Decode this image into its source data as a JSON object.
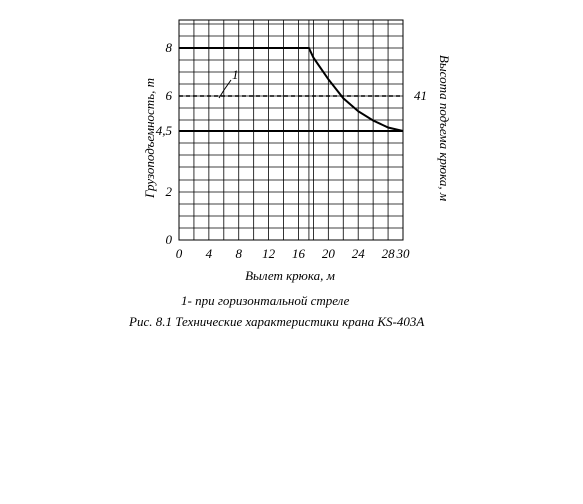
{
  "chart_data": {
    "type": "line",
    "xlabel": "Вылет крюка, м",
    "ylabel": "Грузоподъемность, т",
    "y2label": "Высота подъема крюка, м",
    "x_ticks": [
      "0",
      "4",
      "8",
      "12",
      "16",
      "20",
      "24",
      "28",
      "30"
    ],
    "y_ticks": [
      "0",
      "2",
      "4,5",
      "6",
      "8"
    ],
    "xlim": [
      0,
      30
    ],
    "ylim": [
      0,
      9
    ],
    "grid": true,
    "series": [
      {
        "style": "solid",
        "x": [
          0,
          17.4,
          18,
          20,
          22,
          24,
          26,
          28,
          30
        ],
        "y": [
          8,
          8,
          7.6,
          6.7,
          5.9,
          5.35,
          4.95,
          4.65,
          4.5
        ]
      },
      {
        "label": "1",
        "style": "dashed",
        "x": [
          0,
          30
        ],
        "y": [
          6,
          6
        ]
      },
      {
        "style": "solid",
        "x": [
          0,
          30
        ],
        "y": [
          4.5,
          4.5
        ]
      }
    ],
    "right_annotation": "41"
  },
  "legend_note": "1- при горизонтальной стреле",
  "figure_caption": "Рис. 8.1 Технические характеристики крана КS-403А"
}
